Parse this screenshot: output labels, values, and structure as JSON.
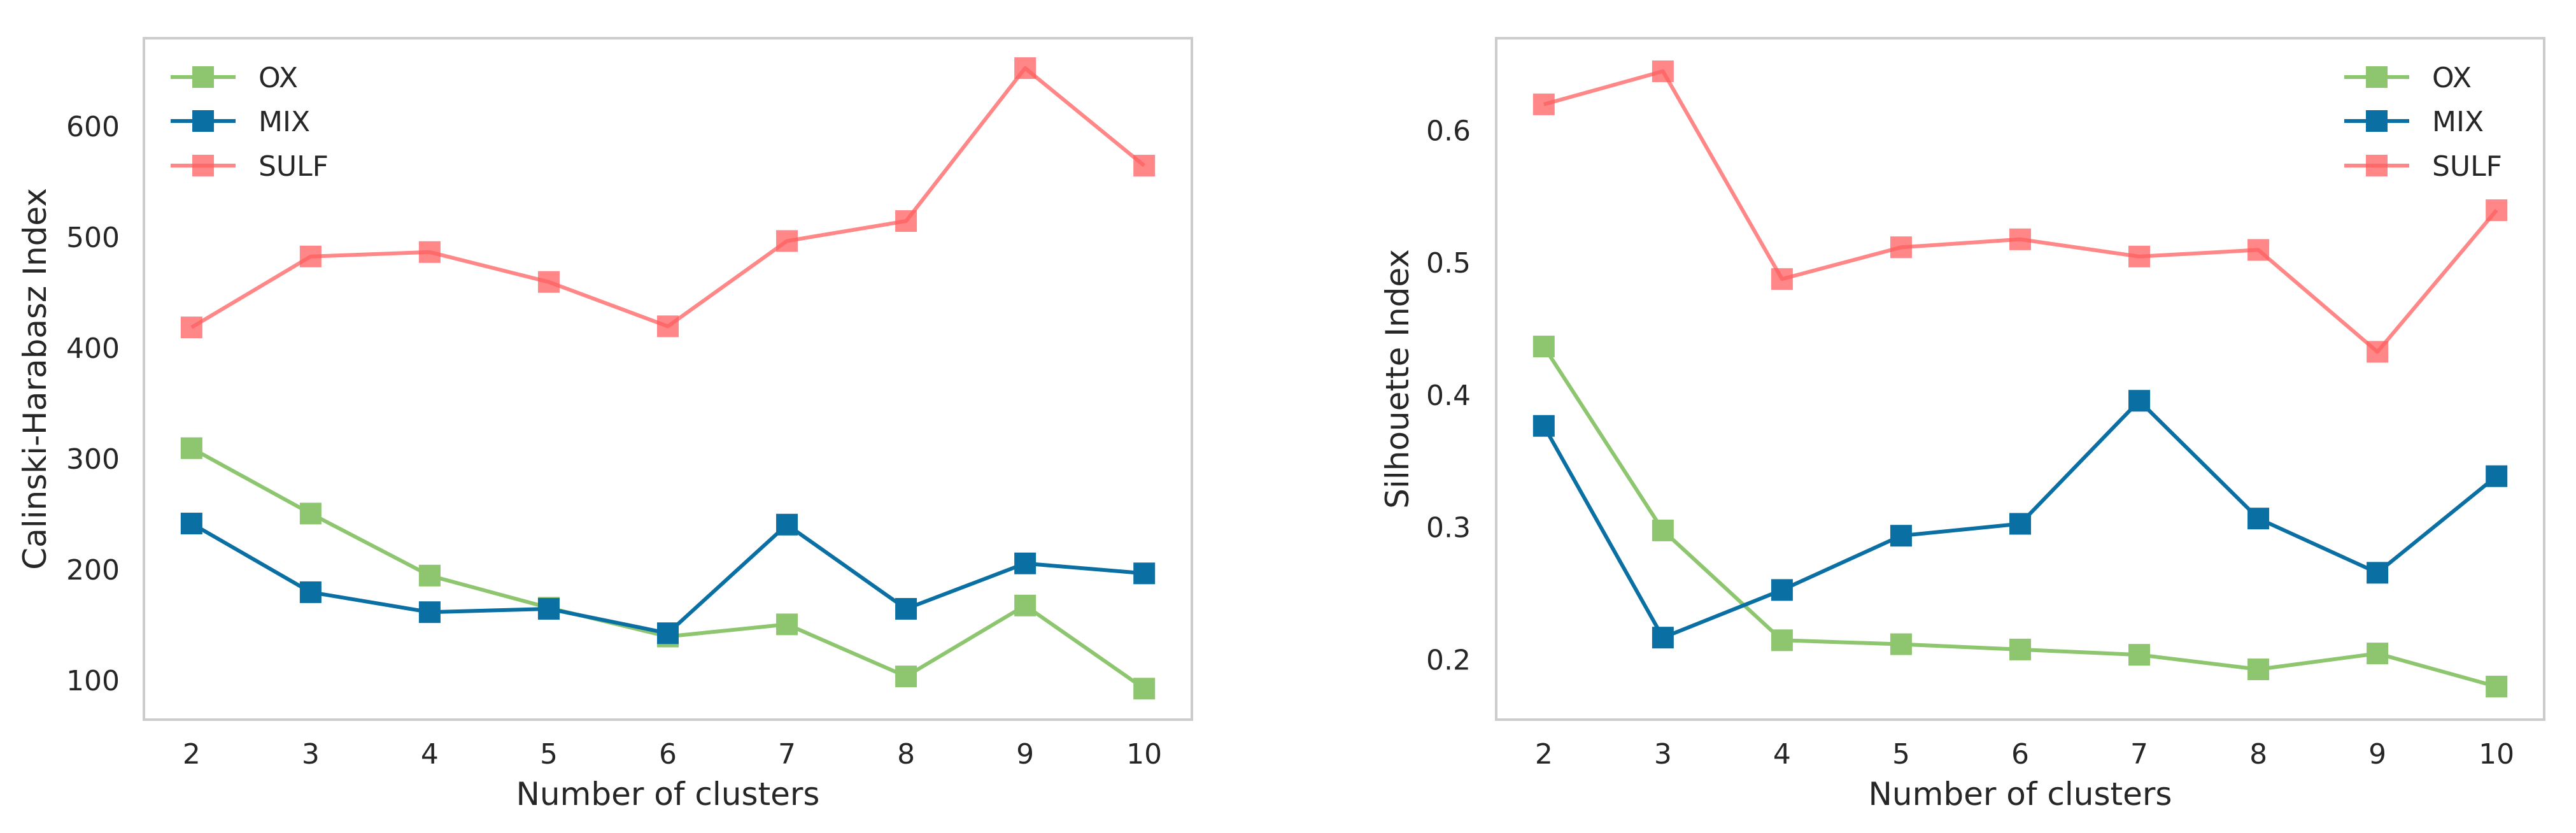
{
  "chart_data": [
    {
      "type": "line",
      "title": "",
      "xlabel": "Number of clusters",
      "ylabel": "Calinski-Harabasz Index",
      "x": [
        2,
        3,
        4,
        5,
        6,
        7,
        8,
        9,
        10
      ],
      "xticks": [
        "2",
        "3",
        "4",
        "5",
        "6",
        "7",
        "8",
        "9",
        "10"
      ],
      "xlim": [
        1.6,
        10.4
      ],
      "yticks": [
        100,
        200,
        300,
        400,
        500,
        600
      ],
      "ylim": [
        65,
        680
      ],
      "grid": false,
      "legend_position": "upper-left",
      "series": [
        {
          "name": "OX",
          "color": "#8dc66e",
          "alpha": 1.0,
          "values": [
            310,
            251,
            195,
            166,
            140,
            151,
            104,
            168,
            93
          ]
        },
        {
          "name": "MIX",
          "color": "#0a6fa3",
          "alpha": 1.0,
          "values": [
            242,
            180,
            162,
            165,
            143,
            241,
            165,
            206,
            197
          ]
        },
        {
          "name": "SULF",
          "color": "#ff5f5f",
          "alpha": 0.75,
          "values": [
            419,
            483,
            487,
            460,
            420,
            497,
            515,
            653,
            565
          ]
        }
      ]
    },
    {
      "type": "line",
      "title": "",
      "xlabel": "Number of clusters",
      "ylabel": "Silhouette Index",
      "x": [
        2,
        3,
        4,
        5,
        6,
        7,
        8,
        9,
        10
      ],
      "xticks": [
        "2",
        "3",
        "4",
        "5",
        "6",
        "7",
        "8",
        "9",
        "10"
      ],
      "xlim": [
        1.6,
        10.4
      ],
      "yticks": [
        "0.2",
        "0.3",
        "0.4",
        "0.5",
        "0.6"
      ],
      "ylim": [
        0.155,
        0.67
      ],
      "grid": false,
      "legend_position": "upper-right",
      "series": [
        {
          "name": "OX",
          "color": "#8dc66e",
          "alpha": 1.0,
          "values": [
            0.437,
            0.298,
            0.215,
            0.212,
            0.208,
            0.204,
            0.193,
            0.205,
            0.18
          ]
        },
        {
          "name": "MIX",
          "color": "#0a6fa3",
          "alpha": 1.0,
          "values": [
            0.377,
            0.217,
            0.253,
            0.294,
            0.303,
            0.396,
            0.307,
            0.266,
            0.339
          ]
        },
        {
          "name": "SULF",
          "color": "#ff5f5f",
          "alpha": 0.75,
          "values": [
            0.62,
            0.645,
            0.488,
            0.512,
            0.518,
            0.505,
            0.51,
            0.433,
            0.54
          ]
        }
      ]
    }
  ]
}
